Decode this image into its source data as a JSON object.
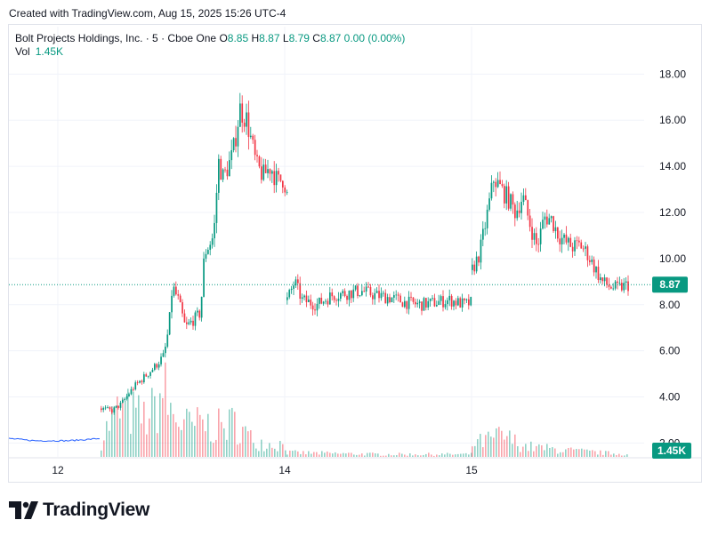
{
  "caption": "Created with TradingView.com, Aug 15, 2025 15:26 UTC-4",
  "legend": {
    "symbol": "Bolt Projects Holdings, Inc. · 5 · Cboe One",
    "o_label": "O",
    "o_value": "8.85",
    "h_label": "H",
    "h_value": "8.87",
    "l_label": "L",
    "l_value": "8.79",
    "c_label": "C",
    "c_value": "8.87",
    "change": "0.00 (0.00%)",
    "vol_label": "Vol",
    "vol_value": "1.45K"
  },
  "brand": "TradingView",
  "colors": {
    "up": "#089981",
    "down": "#f23645",
    "grid": "#f0f3fa",
    "price_line": "#089981"
  },
  "chart_data": {
    "type": "candlestick",
    "timeframe": "5",
    "x_ticks": [
      "12",
      "14",
      "15"
    ],
    "y_ticks": [
      "18.00",
      "16.00",
      "14.00",
      "12.00",
      "10.00",
      "8.00",
      "6.00",
      "4.00",
      "2.00"
    ],
    "ylim": [
      1.4,
      18.9
    ],
    "last_price": "8.87",
    "last_volume": "1.45K",
    "grid": true,
    "series": [
      {
        "segment": "pre-market Aug 12",
        "path": [
          [
            0.0,
            2.2
          ],
          [
            0.06,
            2.15
          ],
          [
            0.12,
            2.1
          ],
          [
            0.2,
            2.1
          ],
          [
            0.28,
            2.1
          ],
          [
            0.36,
            2.15
          ],
          [
            0.43,
            2.2
          ]
        ]
      },
      {
        "segment": "Aug 12-13",
        "path": [
          [
            0.43,
            3.5
          ],
          [
            0.52,
            3.4
          ],
          [
            0.6,
            3.7
          ],
          [
            0.7,
            4.4
          ],
          [
            0.8,
            4.9
          ],
          [
            0.88,
            5.3
          ],
          [
            0.96,
            5.8
          ],
          [
            1.0,
            7.0
          ],
          [
            1.03,
            8.8
          ],
          [
            1.08,
            8.2
          ],
          [
            1.14,
            7.0
          ],
          [
            1.2,
            7.3
          ],
          [
            1.26,
            7.6
          ],
          [
            1.28,
            8.5
          ],
          [
            1.3,
            10.2
          ],
          [
            1.38,
            11.0
          ],
          [
            1.42,
            14.2
          ],
          [
            1.46,
            13.5
          ],
          [
            1.54,
            14.5
          ],
          [
            1.6,
            16.5
          ],
          [
            1.66,
            16.0
          ],
          [
            1.7,
            15.0
          ],
          [
            1.74,
            14.0
          ],
          [
            1.8,
            13.6
          ],
          [
            1.86,
            14.0
          ],
          [
            1.92,
            13.3
          ],
          [
            1.97,
            13.5
          ],
          [
            2.0,
            12.7
          ]
        ]
      },
      {
        "segment": "Aug 14",
        "path": [
          [
            2.0,
            8.2
          ],
          [
            2.04,
            9.0
          ],
          [
            2.08,
            8.2
          ],
          [
            2.16,
            8.0
          ],
          [
            2.24,
            8.4
          ],
          [
            2.32,
            8.5
          ],
          [
            2.4,
            8.6
          ],
          [
            2.48,
            8.4
          ],
          [
            2.56,
            8.3
          ],
          [
            2.64,
            8.1
          ],
          [
            2.72,
            8.0
          ],
          [
            2.8,
            8.1
          ],
          [
            2.88,
            8.2
          ],
          [
            2.96,
            8.0
          ],
          [
            3.0,
            8.1
          ]
        ]
      },
      {
        "segment": "Aug 15",
        "path": [
          [
            3.0,
            9.5
          ],
          [
            3.04,
            10.2
          ],
          [
            3.08,
            11.8
          ],
          [
            3.12,
            13.5
          ],
          [
            3.16,
            13.0
          ],
          [
            3.2,
            12.6
          ],
          [
            3.24,
            12.0
          ],
          [
            3.28,
            12.7
          ],
          [
            3.32,
            11.5
          ],
          [
            3.36,
            10.5
          ],
          [
            3.4,
            11.8
          ],
          [
            3.44,
            11.7
          ],
          [
            3.48,
            11.0
          ],
          [
            3.52,
            10.7
          ],
          [
            3.56,
            10.5
          ],
          [
            3.6,
            10.6
          ],
          [
            3.64,
            10.2
          ],
          [
            3.68,
            9.6
          ],
          [
            3.72,
            9.0
          ],
          [
            3.76,
            8.8
          ],
          [
            3.8,
            8.7
          ],
          [
            3.84,
            8.8
          ],
          [
            3.87,
            8.87
          ]
        ]
      }
    ],
    "volume_series": [
      {
        "segment": "Aug 12-13",
        "path": [
          [
            0.43,
            0.2
          ],
          [
            0.52,
            0.45
          ],
          [
            0.6,
            0.55
          ],
          [
            0.7,
            0.5
          ],
          [
            0.8,
            0.45
          ],
          [
            0.88,
            0.55
          ],
          [
            0.96,
            0.8
          ],
          [
            1.0,
            0.55
          ],
          [
            1.1,
            0.4
          ],
          [
            1.2,
            0.35
          ],
          [
            1.28,
            0.4
          ],
          [
            1.36,
            0.35
          ],
          [
            1.46,
            0.35
          ],
          [
            1.56,
            0.4
          ],
          [
            1.7,
            0.2
          ],
          [
            1.85,
            0.15
          ],
          [
            2.0,
            0.15
          ]
        ]
      },
      {
        "segment": "Aug 14",
        "path": [
          [
            2.0,
            0.05
          ],
          [
            2.5,
            0.03
          ],
          [
            3.0,
            0.03
          ]
        ]
      },
      {
        "segment": "Aug 15",
        "path": [
          [
            3.0,
            0.15
          ],
          [
            3.1,
            0.2
          ],
          [
            3.16,
            0.25
          ],
          [
            3.3,
            0.12
          ],
          [
            3.5,
            0.08
          ],
          [
            3.7,
            0.05
          ],
          [
            3.87,
            0.03
          ]
        ]
      }
    ]
  }
}
